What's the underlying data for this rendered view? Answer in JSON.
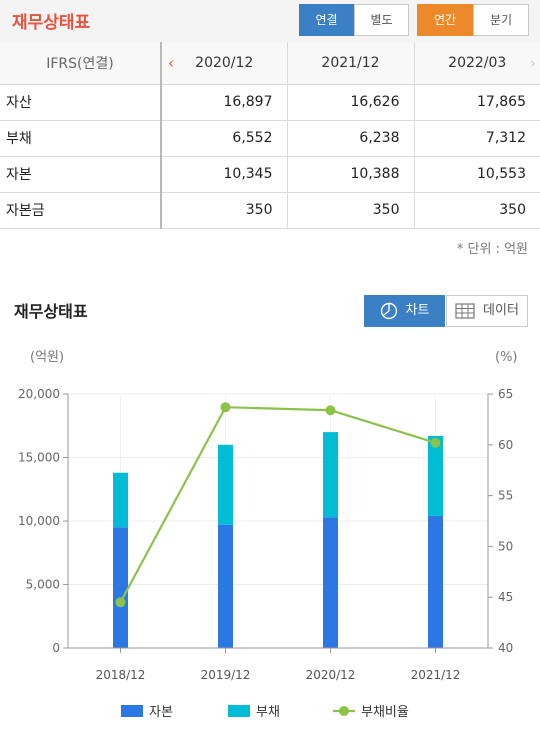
{
  "header": {
    "title": "재무상태표",
    "consolidation_tabs": [
      "연결",
      "별도"
    ],
    "period_tabs": [
      "연간",
      "분기"
    ]
  },
  "table": {
    "header_label": "IFRS(연결)",
    "columns": [
      "2020/12",
      "2021/12",
      "2022/03"
    ],
    "rows": [
      {
        "label": "자산",
        "values": [
          "16,897",
          "16,626",
          "17,865"
        ]
      },
      {
        "label": "부채",
        "values": [
          "6,552",
          "6,238",
          "7,312"
        ]
      },
      {
        "label": "자본",
        "values": [
          "10,345",
          "10,388",
          "10,553"
        ]
      },
      {
        "label": "자본금",
        "values": [
          "350",
          "350",
          "350"
        ]
      }
    ],
    "unit_note": "* 단위 : 억원"
  },
  "chart_section": {
    "title": "재무상태표",
    "chart_button": "차트",
    "data_button": "데이터"
  },
  "colors": {
    "equity": "#2b78e4",
    "liability": "#00bcd4",
    "ratio": "#8bc34a"
  },
  "chart_data": {
    "type": "bar",
    "categories": [
      "2018/12",
      "2019/12",
      "2020/12",
      "2021/12"
    ],
    "y_left_label": "(억원)",
    "y_right_label": "(%)",
    "y_left_range": [
      0,
      20000
    ],
    "y_left_ticks": [
      "0",
      "5,000",
      "10,000",
      "15,000",
      "20,000"
    ],
    "y_right_range": [
      40,
      65
    ],
    "y_right_ticks": [
      "40",
      "45",
      "50",
      "55",
      "60",
      "65"
    ],
    "stacked": true,
    "grid": true,
    "legend_position": "bottom",
    "series": [
      {
        "name": "자본",
        "kind": "bar",
        "values": [
          9500,
          9700,
          10300,
          10400
        ]
      },
      {
        "name": "부채",
        "kind": "bar",
        "values": [
          4300,
          6300,
          6700,
          6300
        ]
      },
      {
        "name": "부채비율",
        "kind": "line",
        "axis": "right",
        "values": [
          44.5,
          63.7,
          63.4,
          60.2
        ]
      }
    ]
  }
}
